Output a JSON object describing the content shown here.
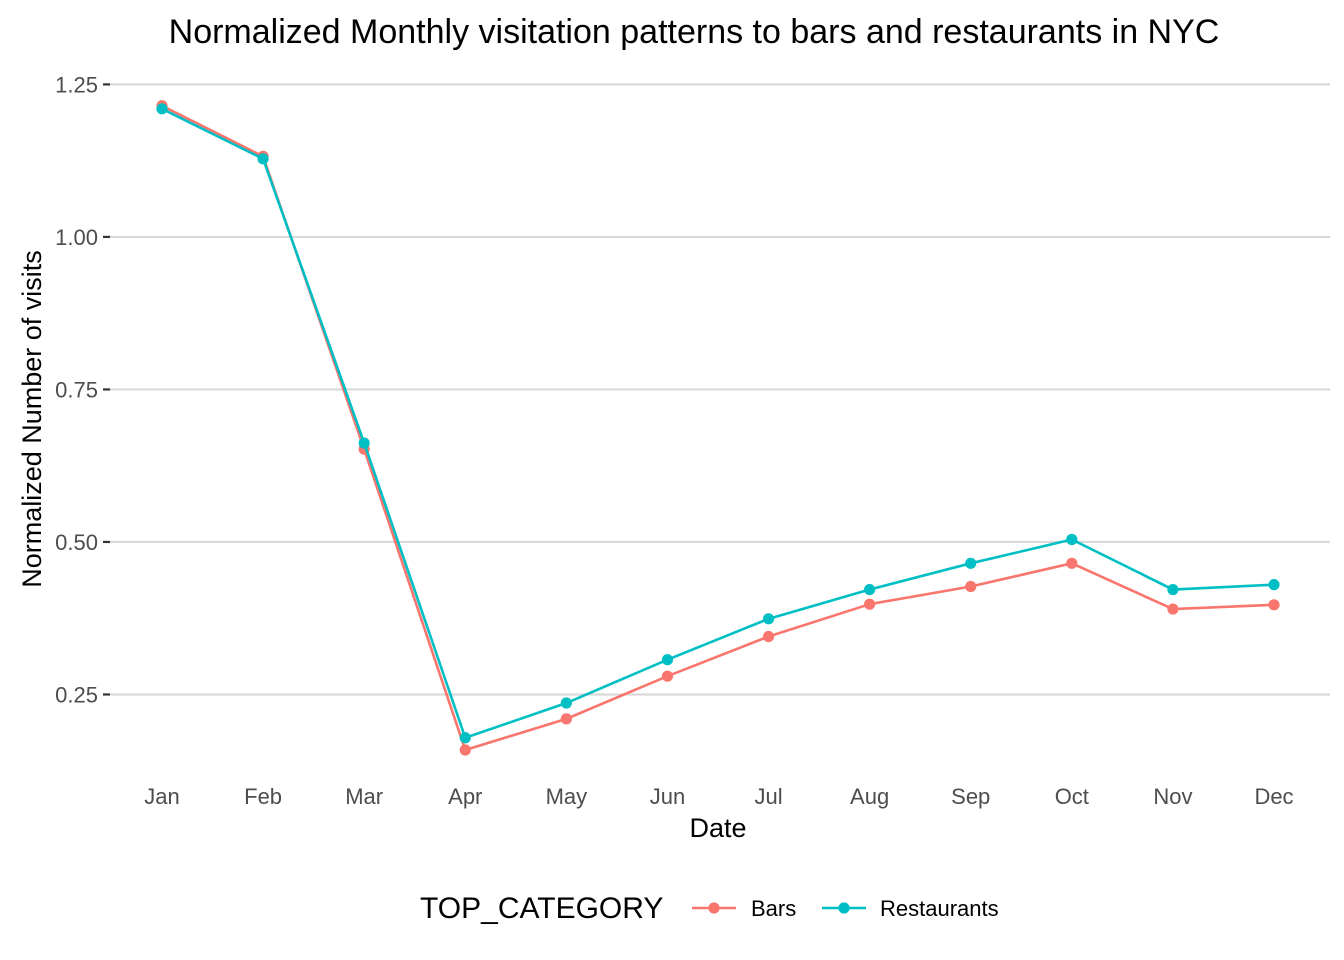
{
  "chart_data": {
    "type": "line",
    "title": "Normalized Monthly visitation patterns to bars and restaurants in NYC",
    "xlabel": "Date",
    "ylabel": "Normalized Number of visits",
    "categories": [
      "Jan",
      "Feb",
      "Mar",
      "Apr",
      "May",
      "Jun",
      "Jul",
      "Aug",
      "Sep",
      "Oct",
      "Nov",
      "Dec"
    ],
    "y_ticks": [
      "0.25",
      "0.50",
      "0.75",
      "1.00",
      "1.25"
    ],
    "ylim": [
      0.118,
      1.29
    ],
    "grid": true,
    "legend": {
      "title": "TOP_CATEGORY",
      "position": "bottom"
    },
    "series": [
      {
        "name": "Bars",
        "color": "#F8766D",
        "values": [
          1.215,
          1.132,
          0.652,
          0.159,
          0.21,
          0.28,
          0.345,
          0.398,
          0.427,
          0.465,
          0.39,
          0.397
        ]
      },
      {
        "name": "Restaurants",
        "color": "#00BFC4",
        "values": [
          1.21,
          1.128,
          0.662,
          0.179,
          0.236,
          0.307,
          0.374,
          0.422,
          0.465,
          0.504,
          0.422,
          0.43
        ]
      }
    ]
  }
}
